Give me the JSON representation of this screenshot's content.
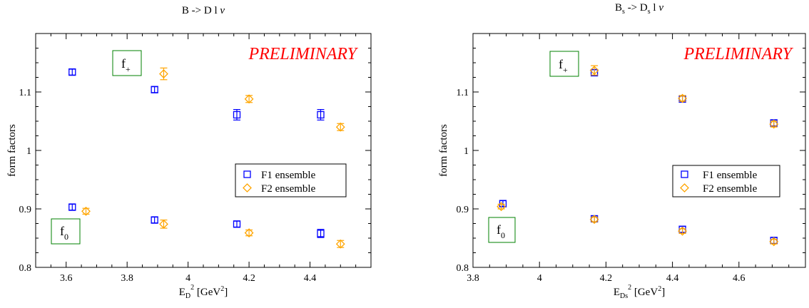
{
  "colors": {
    "f1": "#0000ff",
    "f2": "#ffa500",
    "prelim": "#ff0000",
    "box": "#008000"
  },
  "icons": {
    "f1_marker": "square-marker",
    "f2_marker": "diamond-marker"
  },
  "chart_data": [
    {
      "type": "scatter",
      "title": {
        "main": "B -> D l ",
        "nu": "ν"
      },
      "ylabel": "form factors",
      "xlabel": {
        "main": "E",
        "sub": "D",
        "sup": "2",
        "unit": " [GeV",
        "unit_sup": "2",
        "close": "]"
      },
      "xlim": [
        3.5,
        4.6
      ],
      "ylim": [
        0.8,
        1.2
      ],
      "xticks": [
        3.6,
        3.8,
        4.0,
        4.2,
        4.4
      ],
      "xtick_labels": [
        "3.6",
        "3.8",
        "4",
        "4.2",
        "4.4"
      ],
      "yticks": [
        0.8,
        0.9,
        1.0,
        1.1
      ],
      "ytick_labels": [
        "0.8",
        "0.9",
        "1",
        "1.1"
      ],
      "annotation": "PRELIMINARY",
      "label_fplus": {
        "main": "f",
        "sub": "+"
      },
      "label_fzero": {
        "main": "f",
        "sub": "0"
      },
      "legend": [
        "F1 ensemble",
        "F2 ensemble"
      ],
      "legend_position": "right",
      "series": [
        {
          "name": "F1 ensemble",
          "marker": "square",
          "x": [
            3.62,
            3.89,
            4.16,
            4.435,
            3.62,
            3.89,
            4.16,
            4.435
          ],
          "y": [
            0.903,
            0.881,
            0.874,
            0.858,
            1.134,
            1.104,
            1.061,
            1.061
          ],
          "err": [
            0.005,
            0.005,
            0.005,
            0.007,
            0.005,
            0.005,
            0.009,
            0.009
          ]
        },
        {
          "name": "F2 ensemble",
          "marker": "diamond",
          "x": [
            3.665,
            3.92,
            4.2,
            4.5,
            3.92,
            4.2,
            4.5
          ],
          "y": [
            0.896,
            0.874,
            0.859,
            0.84,
            1.131,
            1.088,
            1.04
          ],
          "err": [
            0.005,
            0.007,
            0.005,
            0.006,
            0.01,
            0.006,
            0.006
          ]
        }
      ]
    },
    {
      "type": "scatter",
      "title": {
        "main": "B",
        "sub": "s",
        "mid": " -> D",
        "sub2": "s",
        "end": " l ",
        "nu": "ν"
      },
      "ylabel": "form factors",
      "xlabel": {
        "main": "E",
        "sub": "Ds",
        "sup": "2",
        "unit": " [GeV",
        "unit_sup": "2",
        "close": "]"
      },
      "xlim": [
        3.8,
        4.8
      ],
      "ylim": [
        0.8,
        1.2
      ],
      "xticks": [
        3.8,
        4.0,
        4.2,
        4.4,
        4.6
      ],
      "xtick_labels": [
        "3.8",
        "4",
        "4.2",
        "4.4",
        "4.6"
      ],
      "yticks": [
        0.8,
        0.9,
        1.0,
        1.1
      ],
      "ytick_labels": [
        "0.8",
        "0.9",
        "1",
        "1.1"
      ],
      "annotation": "PRELIMINARY",
      "label_fplus": {
        "main": "f",
        "sub": "+"
      },
      "label_fzero": {
        "main": "f",
        "sub": "0"
      },
      "legend": [
        "F1 ensemble",
        "F2 ensemble"
      ],
      "legend_position": "right",
      "series": [
        {
          "name": "F1 ensemble",
          "marker": "square",
          "x": [
            3.89,
            4.165,
            4.43,
            4.705,
            4.165,
            4.43,
            4.705
          ],
          "y": [
            0.909,
            0.883,
            0.865,
            0.846,
            1.133,
            1.088,
            1.047
          ],
          "err": [
            0.005,
            0.005,
            0.005,
            0.005,
            0.005,
            0.005,
            0.005
          ]
        },
        {
          "name": "F2 ensemble",
          "marker": "diamond",
          "x": [
            3.885,
            4.165,
            4.43,
            4.705,
            4.165,
            4.43,
            4.705
          ],
          "y": [
            0.904,
            0.882,
            0.862,
            0.844,
            1.137,
            1.089,
            1.045
          ],
          "err": [
            0.004,
            0.004,
            0.004,
            0.004,
            0.008,
            0.005,
            0.005
          ]
        }
      ]
    }
  ]
}
